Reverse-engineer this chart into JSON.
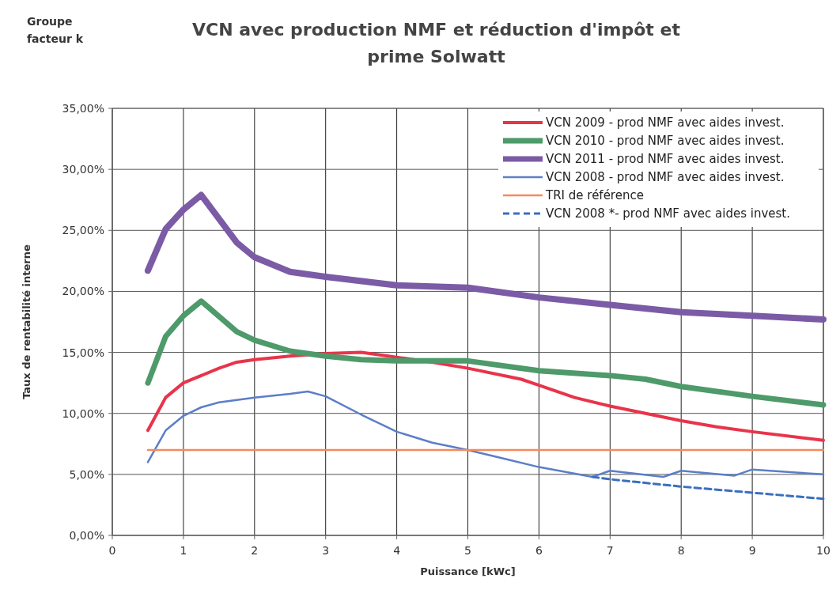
{
  "chart_data": {
    "type": "line",
    "title": "VCN avec production NMF et  réduction d'impôt et\nprime Solwatt",
    "xlabel": "Puissance [kWc]",
    "ylabel": "Taux de rentabilité interne",
    "annotations": [
      "Groupe\nfacteur k"
    ],
    "xlim": [
      0,
      10
    ],
    "xticks": [
      0,
      1,
      2,
      3,
      4,
      5,
      6,
      7,
      8,
      9,
      10
    ],
    "ylim": [
      0,
      35
    ],
    "yticks": [
      {
        "value": 0,
        "label": "0,00%"
      },
      {
        "value": 5,
        "label": "5,00%"
      },
      {
        "value": 10,
        "label": "10,00%"
      },
      {
        "value": 15,
        "label": "15,00%"
      },
      {
        "value": 20,
        "label": "20,00%"
      },
      {
        "value": 25,
        "label": "25,00%"
      },
      {
        "value": 30,
        "label": "30,00%"
      },
      {
        "value": 35,
        "label": "35,00%"
      }
    ],
    "grid": true,
    "legend": "top right",
    "marker": "none",
    "series": [
      {
        "name": "VCN 2009 - prod NMF avec aides invest.",
        "color": "#e8344a",
        "line_style": "solid",
        "x": [
          0.5,
          0.75,
          1,
          1.5,
          1.75,
          2,
          2.5,
          3,
          3.5,
          4,
          4.5,
          5,
          5.75,
          6,
          6.5,
          7,
          7.5,
          8,
          8.5,
          9,
          10
        ],
        "values": [
          8.6,
          11.3,
          12.5,
          13.7,
          14.2,
          14.4,
          14.7,
          14.9,
          15.0,
          14.6,
          14.2,
          13.7,
          12.8,
          12.3,
          11.3,
          10.6,
          10.0,
          9.4,
          8.9,
          8.5,
          7.8
        ]
      },
      {
        "name": "VCN 2010 - prod NMF avec aides invest.",
        "color": "#4e9a6a",
        "line_style": "solid",
        "x": [
          0.5,
          0.75,
          1,
          1.25,
          1.75,
          2,
          2.5,
          3,
          3.5,
          4,
          5,
          6,
          7,
          7.5,
          8,
          9,
          10
        ],
        "values": [
          12.5,
          16.3,
          18.0,
          19.2,
          16.7,
          16.0,
          15.1,
          14.7,
          14.4,
          14.3,
          14.3,
          13.5,
          13.1,
          12.8,
          12.2,
          11.4,
          10.7
        ]
      },
      {
        "name": "VCN 2011 - prod NMF avec aides invest.",
        "color": "#7b5ba6",
        "line_style": "solid",
        "x": [
          0.5,
          0.75,
          1,
          1.25,
          1.75,
          2,
          2.5,
          3,
          4,
          5,
          6,
          7,
          8,
          9,
          10
        ],
        "values": [
          21.7,
          25.1,
          26.7,
          27.9,
          24.0,
          22.8,
          21.6,
          21.2,
          20.5,
          20.3,
          19.5,
          18.9,
          18.3,
          18.0,
          17.7
        ]
      },
      {
        "name": "VCN 2008 - prod NMF avec aides invest.",
        "color": "#5b7fc8",
        "line_style": "solid",
        "x": [
          0.5,
          0.75,
          1,
          1.25,
          1.5,
          2,
          2.5,
          2.75,
          3,
          3.5,
          4,
          4.5,
          5,
          5.5,
          6,
          6.75,
          7,
          7.75,
          8,
          8.75,
          9,
          10
        ],
        "values": [
          6.0,
          8.6,
          9.8,
          10.5,
          10.9,
          11.3,
          11.6,
          11.8,
          11.4,
          9.9,
          8.5,
          7.6,
          7.0,
          6.3,
          5.6,
          4.8,
          5.3,
          4.8,
          5.3,
          4.9,
          5.4,
          5.0
        ]
      },
      {
        "name": "TRI de référence",
        "color": "#f58a5a",
        "line_style": "solid",
        "x": [
          0.5,
          10
        ],
        "values": [
          7.0,
          7.0
        ]
      },
      {
        "name": "VCN 2008 *- prod NMF avec aides invest.",
        "color": "#3a6fc0",
        "line_style": "dashed",
        "x": [
          6.75,
          7,
          8,
          9,
          10
        ],
        "values": [
          4.8,
          4.6,
          4.0,
          3.5,
          3.0
        ]
      }
    ]
  }
}
